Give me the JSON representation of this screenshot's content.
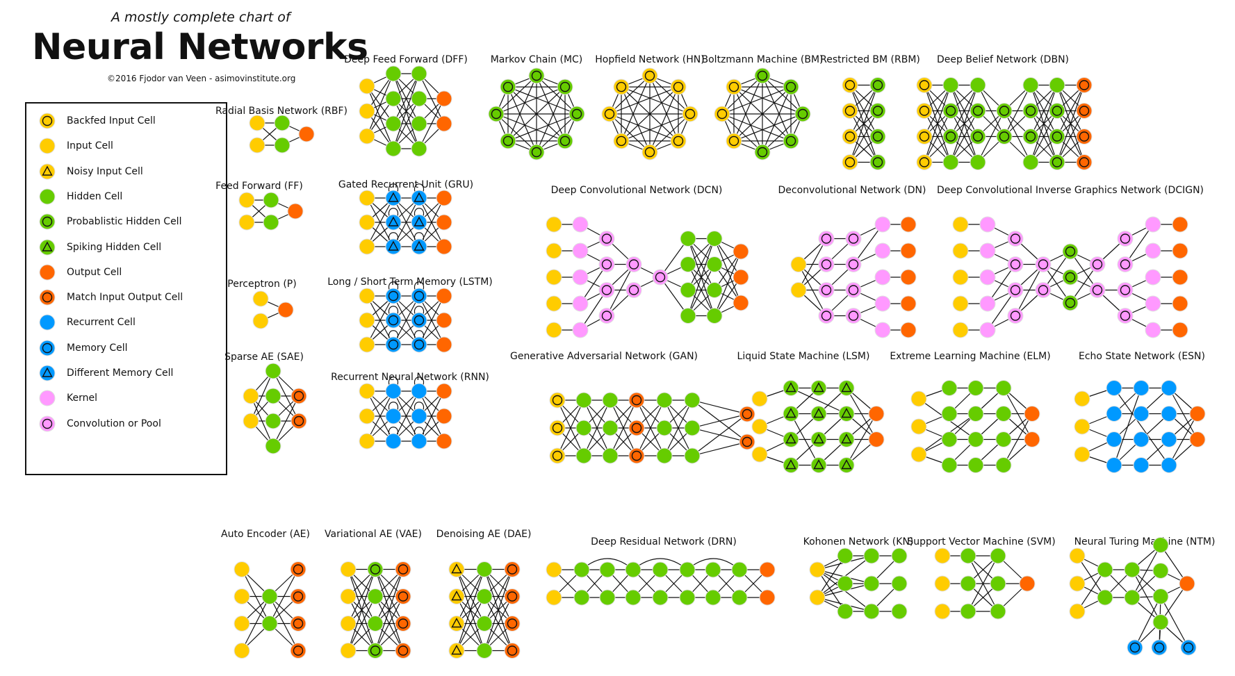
{
  "header": {
    "subtitle": "A mostly complete chart of",
    "title": "Neural Networks",
    "credit": "©2016 Fjodor van Veen - asimovinstitute.org"
  },
  "colors": {
    "input": "#ffcc00",
    "hidden": "#66cc00",
    "output": "#ff6600",
    "recurrent": "#0099ff",
    "kernel": "#ff99ff",
    "stroke": "#111111"
  },
  "legend": [
    {
      "label": "Backfed Input Cell",
      "type": "backfed-input"
    },
    {
      "label": "Input Cell",
      "type": "input"
    },
    {
      "label": "Noisy Input Cell",
      "type": "noisy-input"
    },
    {
      "label": "Hidden Cell",
      "type": "hidden"
    },
    {
      "label": "Probablistic Hidden Cell",
      "type": "probabilistic-hidden"
    },
    {
      "label": "Spiking Hidden Cell",
      "type": "spiking-hidden"
    },
    {
      "label": "Output Cell",
      "type": "output"
    },
    {
      "label": "Match Input Output Cell",
      "type": "match-io"
    },
    {
      "label": "Recurrent Cell",
      "type": "recurrent"
    },
    {
      "label": "Memory Cell",
      "type": "memory"
    },
    {
      "label": "Different Memory Cell",
      "type": "different-memory"
    },
    {
      "label": "Kernel",
      "type": "kernel"
    },
    {
      "label": "Convolution or Pool",
      "type": "convolution"
    }
  ],
  "networks": {
    "rbf": {
      "title": "Radial Basis Network (RBF)"
    },
    "ff": {
      "title": "Feed Forward (FF)"
    },
    "p": {
      "title": "Perceptron (P)"
    },
    "sae": {
      "title": "Sparse AE (SAE)"
    },
    "dff": {
      "title": "Deep Feed Forward (DFF)"
    },
    "gru": {
      "title": "Gated Recurrent Unit (GRU)"
    },
    "lstm": {
      "title": "Long / Short Term Memory (LSTM)"
    },
    "rnn": {
      "title": "Recurrent Neural Network (RNN)"
    },
    "mc": {
      "title": "Markov Chain (MC)"
    },
    "hn": {
      "title": "Hopfield Network (HN)"
    },
    "bm": {
      "title": "Boltzmann Machine (BM)"
    },
    "rbm": {
      "title": "Restricted BM (RBM)"
    },
    "dbn": {
      "title": "Deep Belief Network (DBN)"
    },
    "dcn": {
      "title": "Deep Convolutional Network (DCN)"
    },
    "dn": {
      "title": "Deconvolutional Network (DN)"
    },
    "dcign": {
      "title": "Deep Convolutional Inverse Graphics Network (DCIGN)"
    },
    "gan": {
      "title": "Generative Adversarial Network (GAN)"
    },
    "lsm": {
      "title": "Liquid State Machine (LSM)"
    },
    "elm": {
      "title": "Extreme Learning Machine (ELM)"
    },
    "esn": {
      "title": "Echo State Network (ESN)"
    },
    "ae": {
      "title": "Auto Encoder (AE)"
    },
    "vae": {
      "title": "Variational AE (VAE)"
    },
    "dae": {
      "title": "Denoising AE (DAE)"
    },
    "drn": {
      "title": "Deep Residual Network (DRN)"
    },
    "kn": {
      "title": "Kohonen Network (KN)"
    },
    "svm": {
      "title": "Support Vector Machine (SVM)"
    },
    "ntm": {
      "title": "Neural Turing Machine (NTM)"
    }
  }
}
